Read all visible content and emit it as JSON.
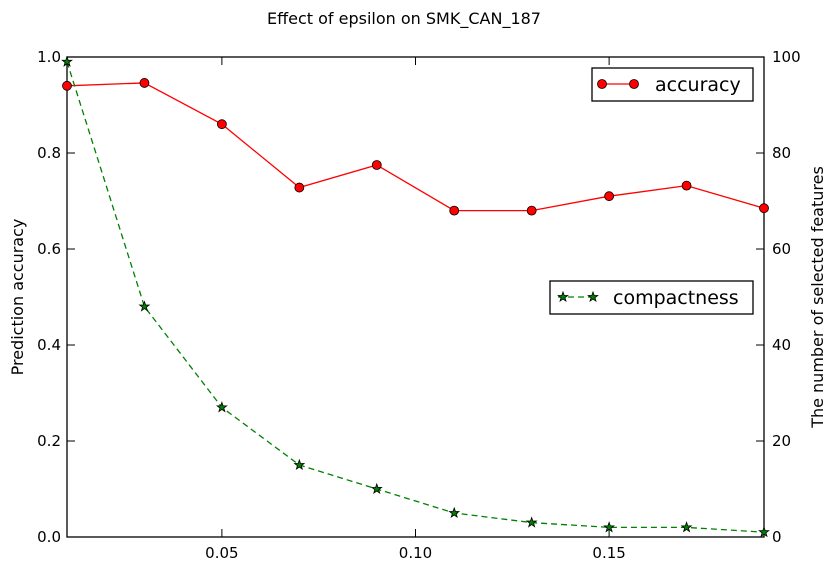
{
  "chart_data": {
    "type": "line",
    "title": "Effect of epsilon on SMK_CAN_187",
    "x": [
      0.01,
      0.03,
      0.05,
      0.07,
      0.09,
      0.11,
      0.13,
      0.15,
      0.17,
      0.19
    ],
    "xlim": [
      0.01,
      0.19
    ],
    "xticks": [
      0.05,
      0.1,
      0.15
    ],
    "xtick_labels": [
      "0.05",
      "0.10",
      "0.15"
    ],
    "xlabel": "",
    "grid": false,
    "left_axis": {
      "label": "Prediction accuracy",
      "ylim": [
        0,
        1
      ],
      "ticks": [
        0.0,
        0.2,
        0.4,
        0.6,
        0.8,
        1.0
      ],
      "tick_labels": [
        "0.0",
        "0.2",
        "0.4",
        "0.6",
        "0.8",
        "1.0"
      ]
    },
    "right_axis": {
      "label": "The number of selected features",
      "ylim": [
        0,
        100
      ],
      "ticks": [
        0,
        20,
        40,
        60,
        80,
        100
      ],
      "tick_labels": [
        "0",
        "20",
        "40",
        "60",
        "80",
        "100"
      ]
    },
    "series": [
      {
        "name": "accuracy",
        "axis": "left",
        "color": "#ff0000",
        "marker": "circle",
        "line_style": "solid",
        "legend_position": "top-right",
        "values": [
          0.94,
          0.946,
          0.86,
          0.728,
          0.775,
          0.68,
          0.68,
          0.71,
          0.732,
          0.685
        ]
      },
      {
        "name": "compactness",
        "axis": "right",
        "color": "#008000",
        "marker": "star",
        "line_style": "dashed",
        "legend_position": "center-right",
        "values": [
          99,
          48,
          27,
          15,
          10,
          5,
          3,
          2,
          2,
          1
        ]
      }
    ]
  }
}
